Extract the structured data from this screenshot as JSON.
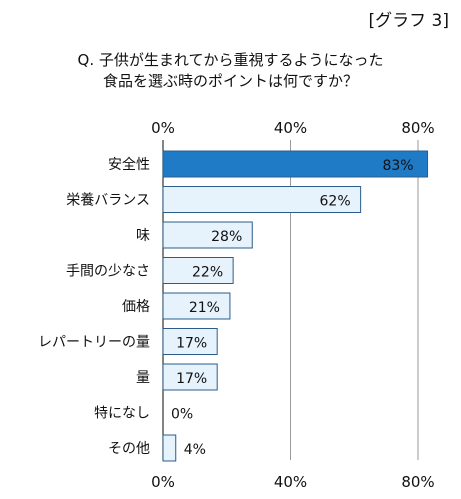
{
  "header": {
    "graph_label": "[グラフ 3]",
    "question_line1": "Q. 子供が生まれてから重視するようになった",
    "question_line2": "食品を選ぶ時のポイントは何ですか？"
  },
  "colors": {
    "highlight_bar": "#1f7bc6",
    "highlight_label": "#ffffff",
    "bar_fill": "#e6f2fc",
    "bar_stroke": "#2b5c8a",
    "grid": "#9a9a9a"
  },
  "chart_data": {
    "type": "bar",
    "orientation": "horizontal",
    "categories": [
      "安全性",
      "栄養バランス",
      "味",
      "手間の少なさ",
      "価格",
      "レパートリーの量",
      "量",
      "特になし",
      "その他"
    ],
    "values": [
      83,
      62,
      28,
      22,
      21,
      17,
      17,
      0,
      4
    ],
    "value_labels": [
      "83%",
      "62%",
      "28%",
      "22%",
      "21%",
      "17%",
      "17%",
      "0%",
      "4%"
    ],
    "highlighted_index": 0,
    "xlim": [
      0,
      80
    ],
    "xticks": [
      0,
      40,
      80
    ],
    "xtick_labels": [
      "0%",
      "40%",
      "80%"
    ],
    "grid": true
  }
}
